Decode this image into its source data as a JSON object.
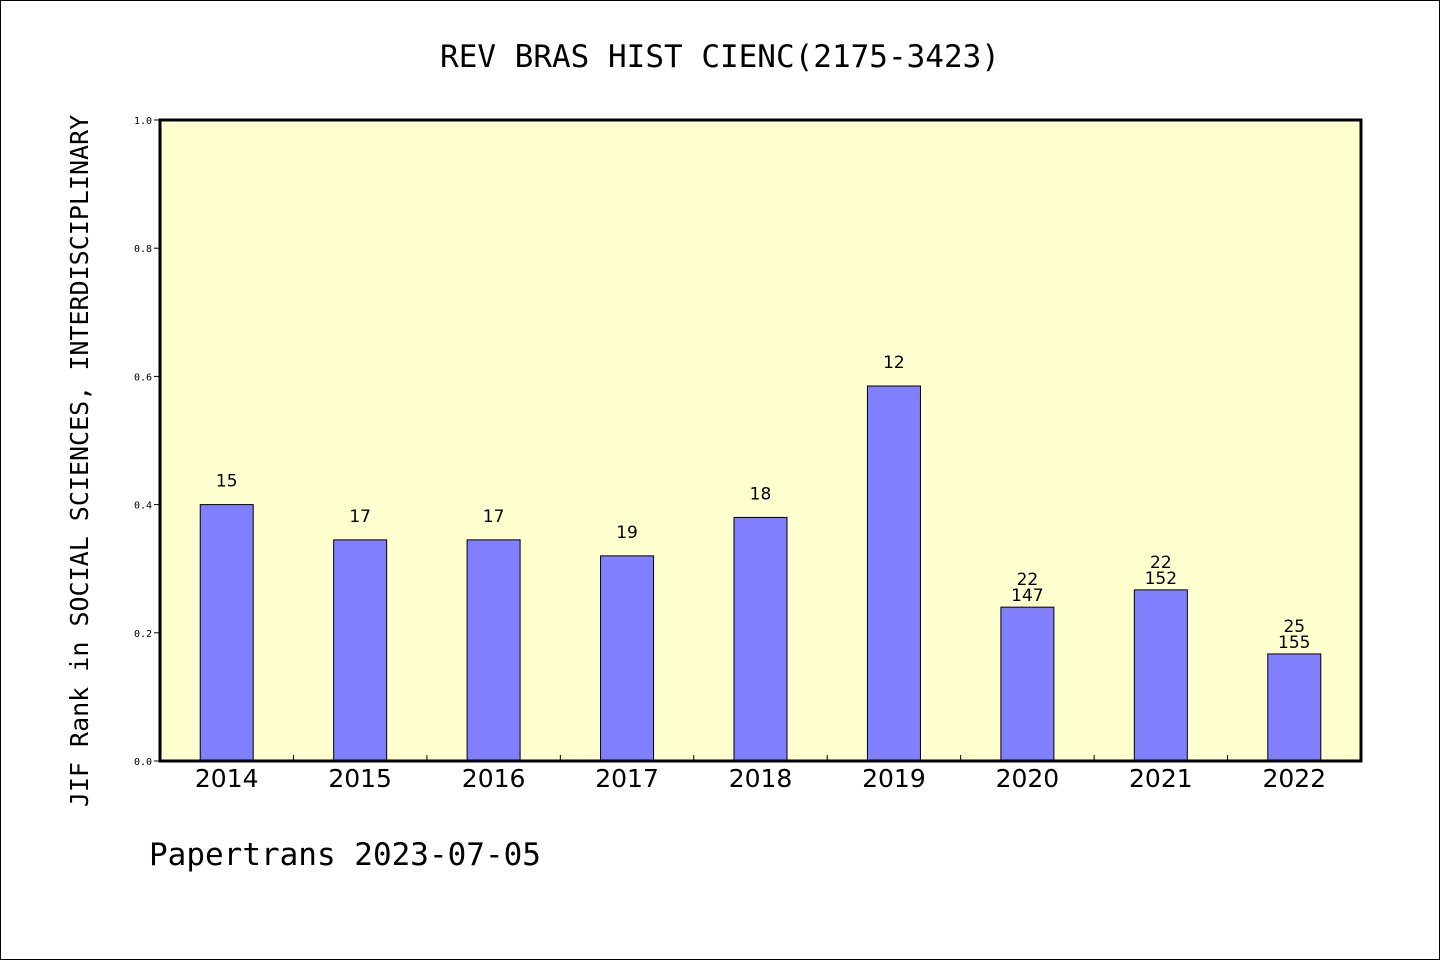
{
  "title": "REV BRAS HIST CIENC(2175-3423)",
  "footer": "Papertrans 2023-07-05",
  "colors": {
    "plot_background": "#ffffd0",
    "bar_fill": "#8080ff",
    "bar_stroke": "#000000",
    "frame": "#000000",
    "text": "#000000"
  },
  "chart_data": {
    "type": "bar",
    "title": "REV BRAS HIST CIENC(2175-3423)",
    "xlabel": "",
    "ylabel": "JIF Rank in SOCIAL SCIENCES, INTERDISCIPLINARY",
    "ylim": [
      0,
      1.0
    ],
    "yticks": [
      "0.0",
      "0.2",
      "0.4",
      "0.6",
      "0.8",
      "1.0"
    ],
    "grid": false,
    "categories": [
      "2014",
      "2015",
      "2016",
      "2017",
      "2018",
      "2019",
      "2020",
      "2021",
      "2022"
    ],
    "values": [
      0.4,
      0.345,
      0.345,
      0.32,
      0.38,
      0.585,
      0.24,
      0.267,
      0.167
    ],
    "labels": [
      [
        "15"
      ],
      [
        "17"
      ],
      [
        "17"
      ],
      [
        "19"
      ],
      [
        "18"
      ],
      [
        "12"
      ],
      [
        "22",
        "147"
      ],
      [
        "22",
        "152"
      ],
      [
        "25",
        "155"
      ]
    ]
  }
}
